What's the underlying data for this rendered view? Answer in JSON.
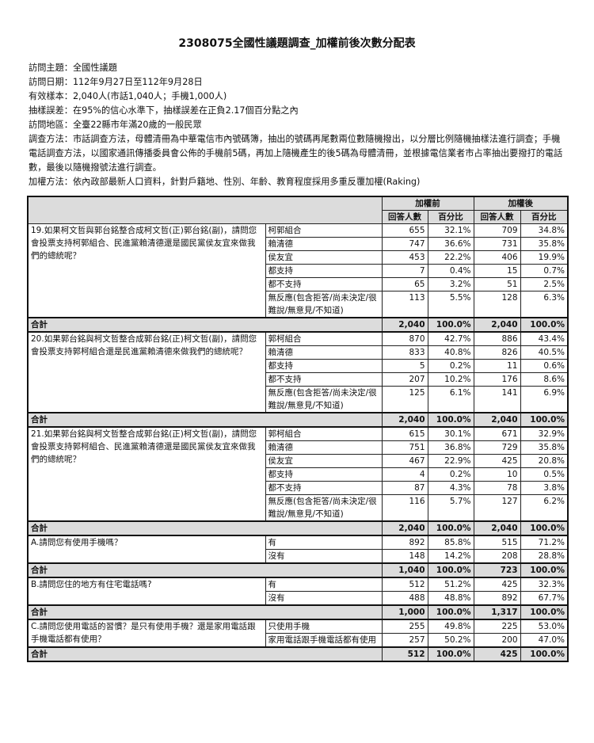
{
  "title": "2308075全國性議題調查_加權前後次數分配表",
  "meta": [
    "訪問主題：全國性議題",
    "訪問日期：112年9月27日至112年9月28日",
    "有效樣本：2,040人(市話1,040人；手機1,000人)",
    "抽樣誤差：在95%的信心水準下，抽樣誤差在正負2.17個百分點之內",
    "訪問地區：全臺22縣市年滿20歲的一般民眾",
    "調查方法：市話調查方法，母體清冊為中華電信市內號碼簿，抽出的號碼再尾數兩位數隨機撥出，以分層比例隨機抽樣法進行調查；手機電話調查方法，以國家通訊傳播委員會公佈的手機前5碼，再加上隨機產生的後5碼為母體清冊，並根據電信業者市占率抽出要撥打的電話數，最後以隨機撥號法進行調查。",
    "加權方法：依內政部最新人口資料，針對戶籍地、性別、年齡、教育程度採用多重反覆加權(Raking)"
  ],
  "table": {
    "before_label": "加權前",
    "after_label": "加權後",
    "count_label": "回答人數",
    "pct_label": "百分比",
    "total_label": "合計",
    "sections": [
      {
        "question": "19.如果柯文哲與郭台銘整合成柯文哲(正)郭台銘(副)，請問您會投票支持柯郭組合、民進黨賴清德還是國民黨侯友宜來做我們的總統呢？",
        "options": [
          {
            "label": "柯郭組合",
            "bn": "655",
            "bp": "32.1%",
            "an": "709",
            "ap": "34.8%"
          },
          {
            "label": "賴清德",
            "bn": "747",
            "bp": "36.6%",
            "an": "731",
            "ap": "35.8%"
          },
          {
            "label": "侯友宜",
            "bn": "453",
            "bp": "22.2%",
            "an": "406",
            "ap": "19.9%"
          },
          {
            "label": "都支持",
            "bn": "7",
            "bp": "0.4%",
            "an": "15",
            "ap": "0.7%"
          },
          {
            "label": "都不支持",
            "bn": "65",
            "bp": "3.2%",
            "an": "51",
            "ap": "2.5%"
          },
          {
            "label": "無反應(包含拒答/尚未決定/很難說/無意見/不知道)",
            "bn": "113",
            "bp": "5.5%",
            "an": "128",
            "ap": "6.3%"
          }
        ],
        "total": {
          "bn": "2,040",
          "bp": "100.0%",
          "an": "2,040",
          "ap": "100.0%"
        }
      },
      {
        "question": "20.如果郭台銘與柯文哲整合成郭台銘(正)柯文哲(副)，請問您會投票支持郭柯組合還是民進黨賴清德來做我們的總統呢？",
        "options": [
          {
            "label": "郭柯組合",
            "bn": "870",
            "bp": "42.7%",
            "an": "886",
            "ap": "43.4%"
          },
          {
            "label": "賴清德",
            "bn": "833",
            "bp": "40.8%",
            "an": "826",
            "ap": "40.5%"
          },
          {
            "label": "都支持",
            "bn": "5",
            "bp": "0.2%",
            "an": "11",
            "ap": "0.6%"
          },
          {
            "label": "都不支持",
            "bn": "207",
            "bp": "10.2%",
            "an": "176",
            "ap": "8.6%"
          },
          {
            "label": "無反應(包含拒答/尚未決定/很難說/無意見/不知道)",
            "bn": "125",
            "bp": "6.1%",
            "an": "141",
            "ap": "6.9%"
          }
        ],
        "total": {
          "bn": "2,040",
          "bp": "100.0%",
          "an": "2,040",
          "ap": "100.0%"
        }
      },
      {
        "question": "21.如果郭台銘與柯文哲整合成郭台銘(正)柯文哲(副)，請問您會投票支持郭柯組合、民進黨賴清德還是國民黨侯友宜來做我們的總統呢？",
        "options": [
          {
            "label": "郭柯組合",
            "bn": "615",
            "bp": "30.1%",
            "an": "671",
            "ap": "32.9%"
          },
          {
            "label": "賴清德",
            "bn": "751",
            "bp": "36.8%",
            "an": "729",
            "ap": "35.8%"
          },
          {
            "label": "侯友宜",
            "bn": "467",
            "bp": "22.9%",
            "an": "425",
            "ap": "20.8%"
          },
          {
            "label": "都支持",
            "bn": "4",
            "bp": "0.2%",
            "an": "10",
            "ap": "0.5%"
          },
          {
            "label": "都不支持",
            "bn": "87",
            "bp": "4.3%",
            "an": "78",
            "ap": "3.8%"
          },
          {
            "label": "無反應(包含拒答/尚未決定/很難說/無意見/不知道)",
            "bn": "116",
            "bp": "5.7%",
            "an": "127",
            "ap": "6.2%"
          }
        ],
        "total": {
          "bn": "2,040",
          "bp": "100.0%",
          "an": "2,040",
          "ap": "100.0%"
        }
      },
      {
        "question": "A.請問您有使用手機嗎？",
        "options": [
          {
            "label": "有",
            "bn": "892",
            "bp": "85.8%",
            "an": "515",
            "ap": "71.2%"
          },
          {
            "label": "沒有",
            "bn": "148",
            "bp": "14.2%",
            "an": "208",
            "ap": "28.8%"
          }
        ],
        "total": {
          "bn": "1,040",
          "bp": "100.0%",
          "an": "723",
          "ap": "100.0%"
        }
      },
      {
        "question": "B.請問您住的地方有住宅電話嗎?",
        "options": [
          {
            "label": "有",
            "bn": "512",
            "bp": "51.2%",
            "an": "425",
            "ap": "32.3%"
          },
          {
            "label": "沒有",
            "bn": "488",
            "bp": "48.8%",
            "an": "892",
            "ap": "67.7%"
          }
        ],
        "total": {
          "bn": "1,000",
          "bp": "100.0%",
          "an": "1,317",
          "ap": "100.0%"
        }
      },
      {
        "question": "C.請問您使用電話的習慣？是只有使用手機？還是家用電話跟手機電話都有使用？",
        "options": [
          {
            "label": "只使用手機",
            "bn": "255",
            "bp": "49.8%",
            "an": "225",
            "ap": "53.0%"
          },
          {
            "label": "家用電話跟手機電話都有使用",
            "bn": "257",
            "bp": "50.2%",
            "an": "200",
            "ap": "47.0%"
          }
        ],
        "total": {
          "bn": "512",
          "bp": "100.0%",
          "an": "425",
          "ap": "100.0%"
        }
      }
    ]
  }
}
